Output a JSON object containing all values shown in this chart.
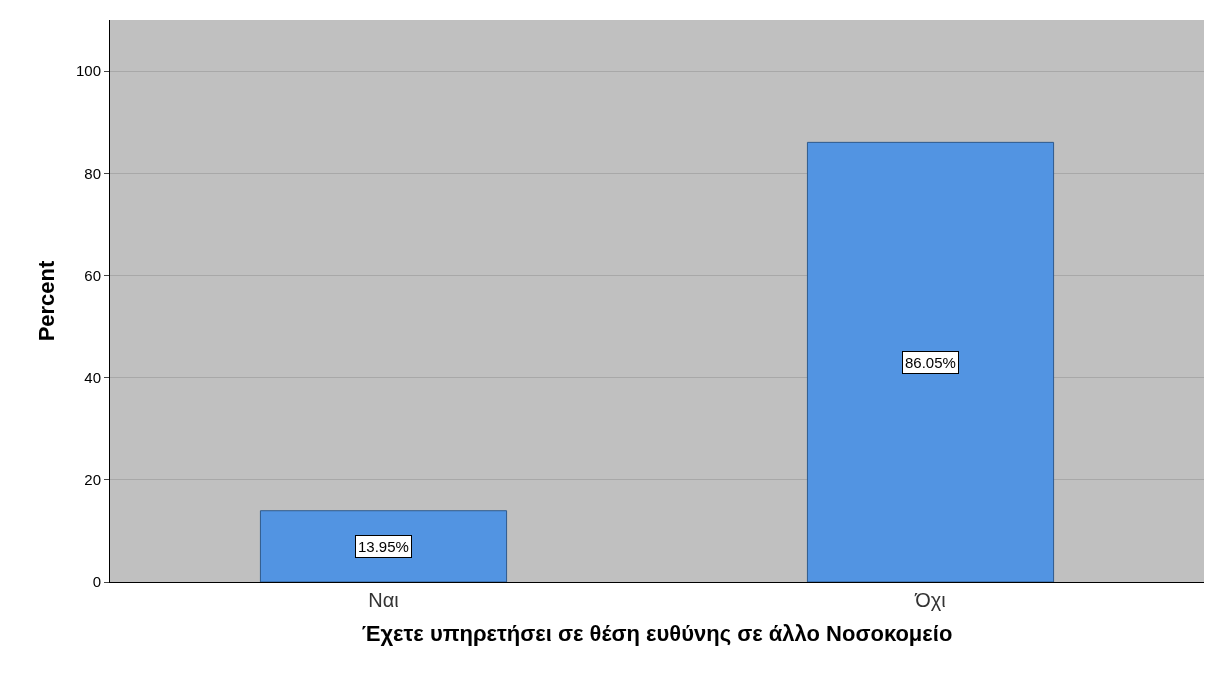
{
  "chart_data": {
    "type": "bar",
    "xlabel": "Έχετε υπηρετήσει σε θέση ευθύνης σε άλλο Νοσοκομείο",
    "ylabel": "Percent",
    "categories": [
      "Ναι",
      "Όχι"
    ],
    "values": [
      13.95,
      86.05
    ],
    "value_labels": [
      "13.95%",
      "86.05%"
    ],
    "color": "#5294e2",
    "ylim": [
      0,
      110
    ],
    "yticks": [
      0,
      20,
      40,
      60,
      80,
      100
    ],
    "grid": "y"
  }
}
